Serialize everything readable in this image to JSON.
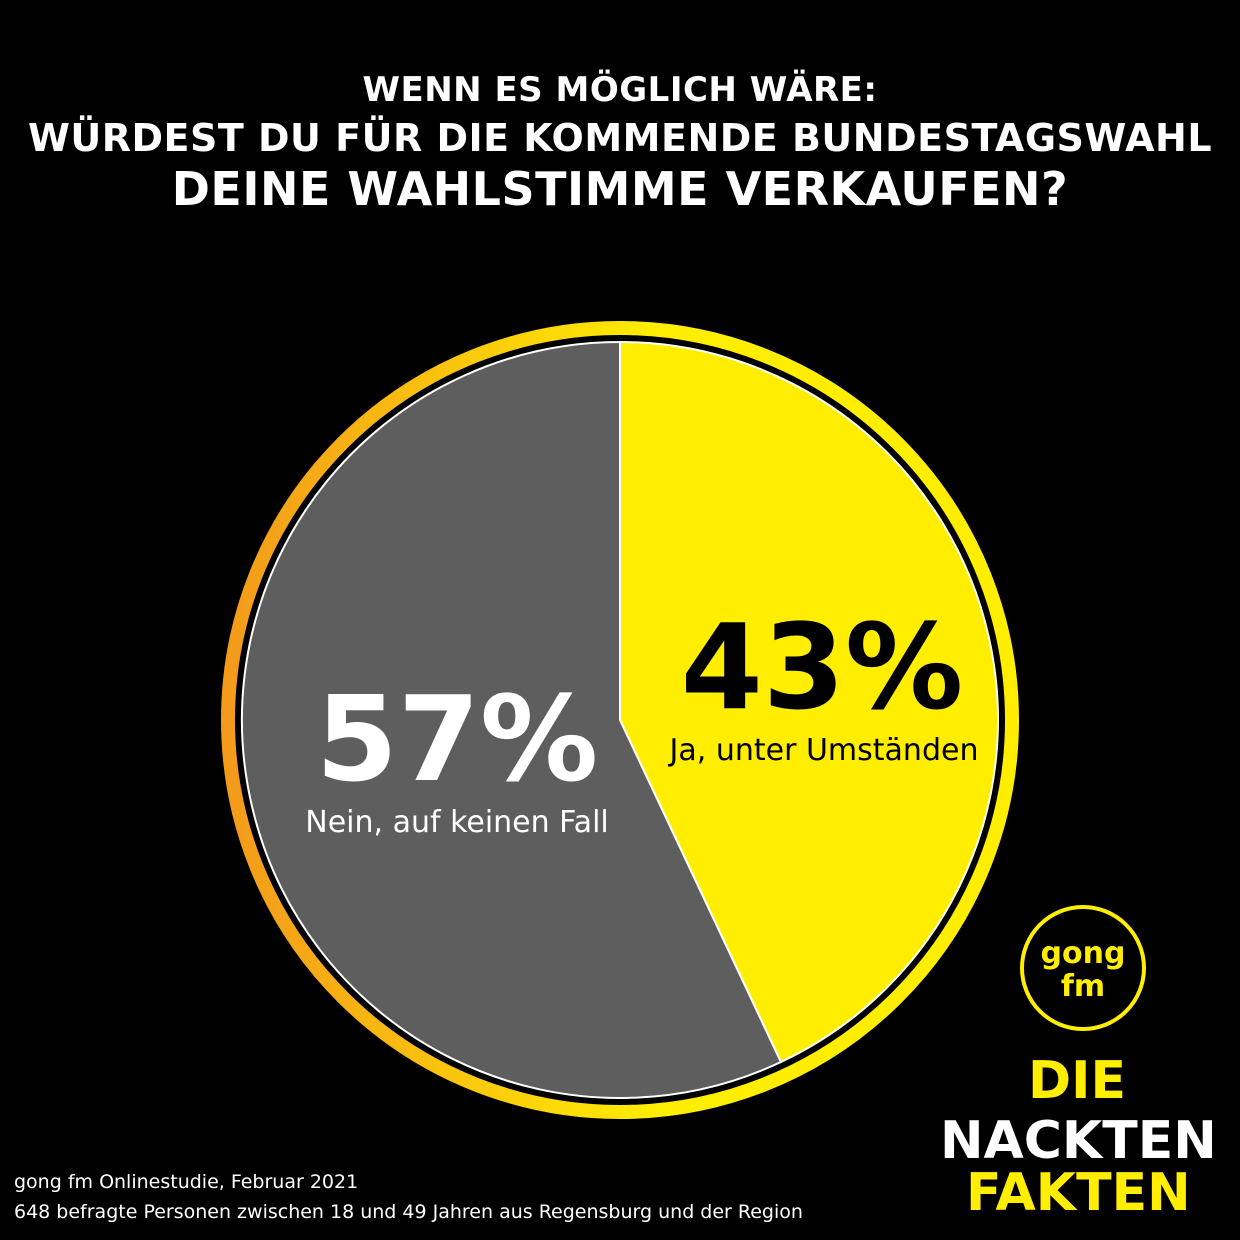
{
  "header": {
    "line1": "WENN ES MÖGLICH WÄRE:",
    "line2": "WÜRDEST DU FÜR DIE KOMMENDE BUNDESTAGSWAHL",
    "line3": "DEINE WAHLSTIMME VERKAUFEN?"
  },
  "chart_data": {
    "type": "pie",
    "title": "WENN ES MÖGLICH WÄRE: WÜRDEST DU FÜR DIE KOMMENDE BUNDESTAGSWAHL DEINE WAHLSTIMME VERKAUFEN?",
    "slices": [
      {
        "label": "Ja, unter Umständen",
        "value": 43,
        "display": "43%",
        "color": "#ffee00"
      },
      {
        "label": "Nein, auf keinen Fall",
        "value": 57,
        "display": "57%",
        "color": "#5e5e5e"
      }
    ],
    "ring_gradient": [
      "#f39a1b",
      "#ffee00"
    ]
  },
  "footer": {
    "line1": "gong fm Onlinestudie, Februar 2021",
    "line2": "648 befragte Personen zwischen 18 und 49 Jahren aus Regensburg und der Region"
  },
  "brand": {
    "logo_line1": "gong",
    "logo_line2": "fm",
    "word1": "DIE",
    "word2": "NACKTEN",
    "word3": "FAKTEN",
    "accent": "#ffee00"
  }
}
